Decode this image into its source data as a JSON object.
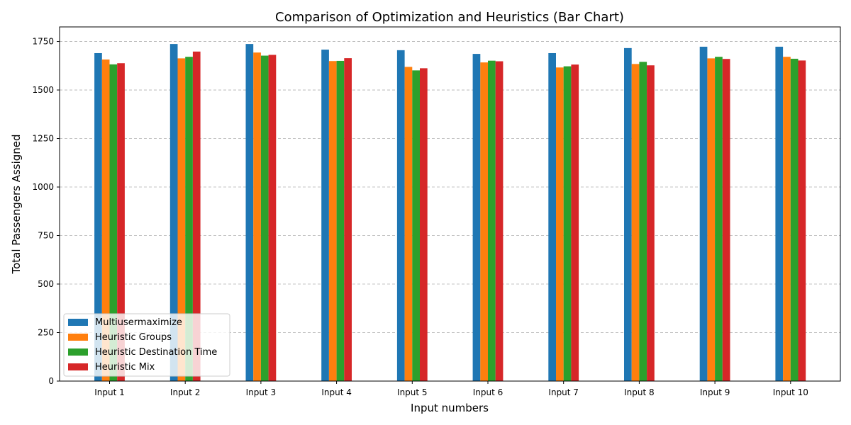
{
  "chart_data": {
    "type": "bar",
    "title": "Comparison of Optimization and Heuristics (Bar Chart)",
    "xlabel": "Input numbers",
    "ylabel": "Total Passengers Assigned",
    "categories": [
      "Input 1",
      "Input 2",
      "Input 3",
      "Input 4",
      "Input 5",
      "Input 6",
      "Input 7",
      "Input 8",
      "Input 9",
      "Input 10"
    ],
    "ylim": [
      0,
      1825
    ],
    "yticks": [
      0,
      250,
      500,
      750,
      1000,
      1250,
      1500,
      1750
    ],
    "grid": "y-dashed",
    "legend_position": "lower-left",
    "series": [
      {
        "name": "Multiusermaximize",
        "color": "#1f77b4",
        "values": [
          1690,
          1737,
          1737,
          1708,
          1705,
          1686,
          1690,
          1716,
          1723,
          1723
        ]
      },
      {
        "name": "Heuristic Groups",
        "color": "#ff7f0e",
        "values": [
          1657,
          1663,
          1693,
          1649,
          1619,
          1642,
          1616,
          1634,
          1663,
          1671
        ]
      },
      {
        "name": "Heuristic Destination Time",
        "color": "#2ca02c",
        "values": [
          1632,
          1671,
          1677,
          1650,
          1601,
          1651,
          1622,
          1645,
          1671,
          1661
        ]
      },
      {
        "name": "Heuristic Mix",
        "color": "#d62728",
        "values": [
          1638,
          1698,
          1681,
          1664,
          1612,
          1648,
          1631,
          1627,
          1660,
          1652
        ]
      }
    ]
  }
}
